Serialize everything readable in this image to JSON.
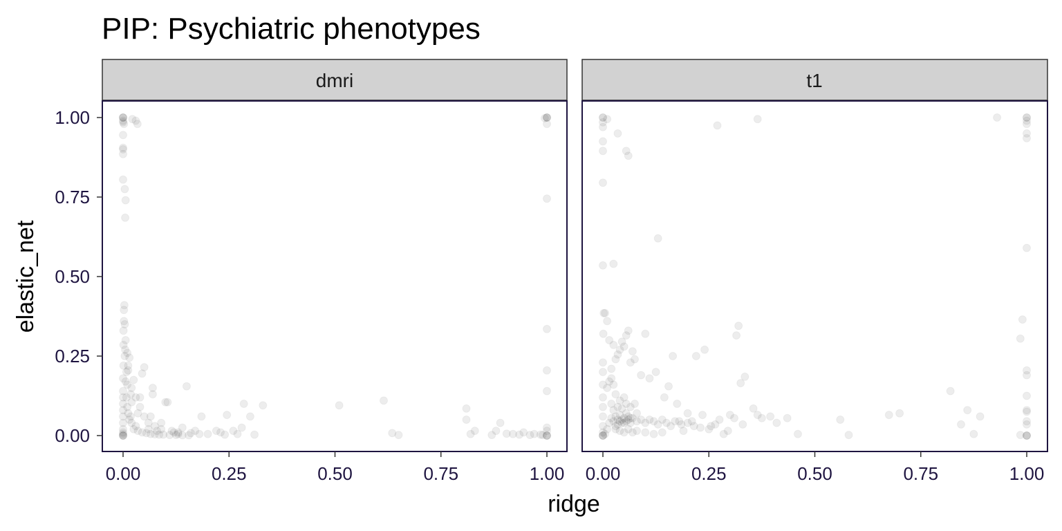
{
  "chart_data": {
    "type": "scatter",
    "title": "PIP: Psychiatric phenotypes",
    "xlabel": "ridge",
    "ylabel": "elastic_net",
    "xlim": [
      0,
      1
    ],
    "ylim": [
      0,
      1
    ],
    "x_ticks": [
      {
        "value": 0.0,
        "label": "0.00"
      },
      {
        "value": 0.25,
        "label": "0.25"
      },
      {
        "value": 0.5,
        "label": "0.50"
      },
      {
        "value": 0.75,
        "label": "0.75"
      },
      {
        "value": 1.0,
        "label": "1.00"
      }
    ],
    "y_ticks": [
      {
        "value": 0.0,
        "label": "0.00"
      },
      {
        "value": 0.25,
        "label": "0.25"
      },
      {
        "value": 0.5,
        "label": "0.50"
      },
      {
        "value": 0.75,
        "label": "0.75"
      },
      {
        "value": 1.0,
        "label": "1.00"
      }
    ],
    "grid": false,
    "point_color": "#000000",
    "point_alpha": 0.07,
    "panels": [
      {
        "name": "dmri",
        "points": [
          [
            0,
            1
          ],
          [
            0,
            1
          ],
          [
            0,
            1
          ],
          [
            0,
            0.99
          ],
          [
            0,
            0.985
          ],
          [
            0.002,
            0.98
          ],
          [
            0,
            0.945
          ],
          [
            0,
            0.905
          ],
          [
            0,
            0.9
          ],
          [
            0,
            0.885
          ],
          [
            0,
            0.805
          ],
          [
            0.004,
            0.775
          ],
          [
            0.006,
            0.74
          ],
          [
            0.005,
            0.685
          ],
          [
            0.03,
            0.99
          ],
          [
            0.034,
            0.98
          ],
          [
            0.022,
            0.995
          ],
          [
            1,
            1
          ],
          [
            1,
            1
          ],
          [
            1,
            1
          ],
          [
            0.995,
            0.998
          ],
          [
            1,
            0.98
          ],
          [
            1,
            0.745
          ],
          [
            1,
            0.335
          ],
          [
            1,
            0.205
          ],
          [
            1,
            0.14
          ],
          [
            1,
            0.025
          ],
          [
            1,
            0.015
          ],
          [
            1,
            0
          ],
          [
            1,
            0
          ],
          [
            1,
            0
          ],
          [
            0.99,
            0.002
          ],
          [
            0.985,
            0.003
          ],
          [
            0.97,
            0.005
          ],
          [
            0.96,
            0.002
          ],
          [
            0.945,
            0.01
          ],
          [
            0.935,
            0.003
          ],
          [
            0.92,
            0.005
          ],
          [
            0.905,
            0.006
          ],
          [
            0.89,
            0.04
          ],
          [
            0.88,
            0.015
          ],
          [
            0.87,
            0.002
          ],
          [
            0.83,
            0.015
          ],
          [
            0.82,
            0.005
          ],
          [
            0.81,
            0.05
          ],
          [
            0.81,
            0.085
          ],
          [
            0.65,
            0.002
          ],
          [
            0.635,
            0.008
          ],
          [
            0.615,
            0.11
          ],
          [
            0.51,
            0.095
          ],
          [
            0.33,
            0.095
          ],
          [
            0.31,
            0.003
          ],
          [
            0.3,
            0.06
          ],
          [
            0.285,
            0.1
          ],
          [
            0.28,
            0.025
          ],
          [
            0.27,
            0.005
          ],
          [
            0.26,
            0.015
          ],
          [
            0.245,
            0.065
          ],
          [
            0.23,
            0.01
          ],
          [
            0.22,
            0.015
          ],
          [
            0.185,
            0.06
          ],
          [
            0.18,
            0.005
          ],
          [
            0.17,
            0.015
          ],
          [
            0.15,
            0.155
          ],
          [
            0.14,
            0.025
          ],
          [
            0.13,
            0.005
          ],
          [
            0.12,
            0.01
          ],
          [
            0.105,
            0.105
          ],
          [
            0.1,
            0.105
          ],
          [
            0.09,
            0.04
          ],
          [
            0.08,
            0.015
          ],
          [
            0.07,
            0.15
          ],
          [
            0.07,
            0.13
          ],
          [
            0.065,
            0.06
          ],
          [
            0.06,
            0.02
          ],
          [
            0.05,
            0.215
          ],
          [
            0.045,
            0.195
          ],
          [
            0.04,
            0.12
          ],
          [
            0.035,
            0.07
          ],
          [
            0.03,
            0.03
          ],
          [
            0.025,
            0.175
          ],
          [
            0.02,
            0.105
          ],
          [
            0.018,
            0.06
          ],
          [
            0.015,
            0.245
          ],
          [
            0.012,
            0.205
          ],
          [
            0.01,
            0.26
          ],
          [
            0.01,
            0.16
          ],
          [
            0.008,
            0.12
          ],
          [
            0.006,
            0.3
          ],
          [
            0.005,
            0.27
          ],
          [
            0.004,
            0.35
          ],
          [
            0.003,
            0.41
          ],
          [
            0.002,
            0.395
          ],
          [
            0.002,
            0.36
          ],
          [
            0.001,
            0.33
          ],
          [
            0.001,
            0.285
          ],
          [
            0.001,
            0.22
          ],
          [
            0,
            0.18
          ],
          [
            0,
            0.14
          ],
          [
            0,
            0.12
          ],
          [
            0,
            0.1
          ],
          [
            0,
            0.08
          ],
          [
            0,
            0.06
          ],
          [
            0,
            0.04
          ],
          [
            0,
            0.02
          ],
          [
            0,
            0.01
          ],
          [
            0,
            0.005
          ],
          [
            0,
            0
          ],
          [
            0,
            0
          ],
          [
            0,
            0
          ],
          [
            0.01,
            0.09
          ],
          [
            0.012,
            0.07
          ],
          [
            0.015,
            0.05
          ],
          [
            0.02,
            0.04
          ],
          [
            0.025,
            0.02
          ],
          [
            0.035,
            0.015
          ],
          [
            0.045,
            0.01
          ],
          [
            0.055,
            0.008
          ],
          [
            0.065,
            0.005
          ],
          [
            0.075,
            0.004
          ],
          [
            0.085,
            0.003
          ],
          [
            0.095,
            0.003
          ],
          [
            0.11,
            0.002
          ],
          [
            0.125,
            0.002
          ],
          [
            0.14,
            0.001
          ],
          [
            0.155,
            0.001
          ],
          [
            0.02,
            0.15
          ],
          [
            0.03,
            0.12
          ],
          [
            0.008,
            0.2
          ],
          [
            0.012,
            0.22
          ],
          [
            0.004,
            0.25
          ],
          [
            0.006,
            0.17
          ],
          [
            0.018,
            0.13
          ],
          [
            0.04,
            0.09
          ],
          [
            0.05,
            0.06
          ],
          [
            0.06,
            0.04
          ],
          [
            0.075,
            0.03
          ],
          [
            0.09,
            0.02
          ],
          [
            0.115,
            0.015
          ],
          [
            0.13,
            0.01
          ],
          [
            0.16,
            0.008
          ],
          [
            0.2,
            0.005
          ],
          [
            0.24,
            0.003
          ]
        ]
      },
      {
        "name": "t1",
        "points": [
          [
            0,
            1
          ],
          [
            0,
            1
          ],
          [
            0,
            0.985
          ],
          [
            0,
            0.97
          ],
          [
            0.01,
            0.995
          ],
          [
            0.035,
            0.95
          ],
          [
            0.055,
            0.895
          ],
          [
            0.06,
            0.88
          ],
          [
            0,
            0.925
          ],
          [
            0,
            0.895
          ],
          [
            0,
            0.795
          ],
          [
            0,
            0.535
          ],
          [
            0.025,
            0.54
          ],
          [
            0.27,
            0.975
          ],
          [
            0.365,
            0.995
          ],
          [
            0.93,
            1
          ],
          [
            1,
            1
          ],
          [
            1,
            1
          ],
          [
            1,
            0.99
          ],
          [
            1,
            0.98
          ],
          [
            1,
            0.95
          ],
          [
            1,
            0.935
          ],
          [
            1,
            0.59
          ],
          [
            0.99,
            0.365
          ],
          [
            0.985,
            0.305
          ],
          [
            1,
            0.205
          ],
          [
            1,
            0.19
          ],
          [
            1,
            0.125
          ],
          [
            1,
            0.08
          ],
          [
            1,
            0.075
          ],
          [
            1,
            0.045
          ],
          [
            1,
            0.035
          ],
          [
            1,
            0
          ],
          [
            1,
            0
          ],
          [
            1,
            0
          ],
          [
            0.985,
            0.002
          ],
          [
            0.89,
            0.06
          ],
          [
            0.875,
            0.005
          ],
          [
            0.86,
            0.08
          ],
          [
            0.845,
            0.035
          ],
          [
            0.82,
            0.14
          ],
          [
            0.7,
            0.07
          ],
          [
            0.675,
            0.065
          ],
          [
            0.58,
            0.002
          ],
          [
            0.56,
            0.05
          ],
          [
            0.46,
            0.005
          ],
          [
            0.435,
            0.055
          ],
          [
            0.41,
            0.04
          ],
          [
            0.395,
            0.06
          ],
          [
            0.375,
            0.055
          ],
          [
            0.365,
            0.065
          ],
          [
            0.355,
            0.085
          ],
          [
            0.335,
            0.185
          ],
          [
            0.33,
            0.035
          ],
          [
            0.325,
            0.165
          ],
          [
            0.32,
            0.345
          ],
          [
            0.315,
            0.315
          ],
          [
            0.31,
            0.055
          ],
          [
            0.3,
            0.065
          ],
          [
            0.295,
            0.015
          ],
          [
            0.285,
            0.005
          ],
          [
            0.275,
            0.05
          ],
          [
            0.265,
            0.035
          ],
          [
            0.255,
            0.03
          ],
          [
            0.24,
            0.27
          ],
          [
            0.235,
            0.065
          ],
          [
            0.22,
            0.25
          ],
          [
            0.21,
            0.045
          ],
          [
            0.2,
            0.07
          ],
          [
            0.19,
            0.015
          ],
          [
            0.18,
            0.045
          ],
          [
            0.175,
            0.1
          ],
          [
            0.165,
            0.25
          ],
          [
            0.155,
            0.155
          ],
          [
            0.145,
            0.12
          ],
          [
            0.13,
            0.62
          ],
          [
            0.125,
            0.2
          ],
          [
            0.11,
            0.18
          ],
          [
            0.1,
            0.32
          ],
          [
            0.09,
            0.19
          ],
          [
            0.08,
            0.07
          ],
          [
            0.075,
            0.24
          ],
          [
            0.07,
            0.265
          ],
          [
            0.065,
            0.23
          ],
          [
            0.06,
            0.33
          ],
          [
            0.055,
            0.315
          ],
          [
            0.05,
            0.28
          ],
          [
            0.045,
            0.295
          ],
          [
            0.04,
            0.27
          ],
          [
            0.035,
            0.255
          ],
          [
            0.03,
            0.24
          ],
          [
            0.025,
            0.285
          ],
          [
            0.02,
            0.21
          ],
          [
            0.015,
            0.3
          ],
          [
            0.01,
            0.36
          ],
          [
            0.005,
            0.385
          ],
          [
            0.002,
            0.385
          ],
          [
            0.001,
            0.32
          ],
          [
            0,
            0.23
          ],
          [
            0,
            0.2
          ],
          [
            0,
            0.16
          ],
          [
            0,
            0.12
          ],
          [
            0,
            0.09
          ],
          [
            0,
            0.06
          ],
          [
            0,
            0.03
          ],
          [
            0,
            0.01
          ],
          [
            0,
            0
          ],
          [
            0,
            0
          ],
          [
            0,
            0
          ],
          [
            0.005,
            0.005
          ],
          [
            0.01,
            0.02
          ],
          [
            0.015,
            0.04
          ],
          [
            0.02,
            0.055
          ],
          [
            0.025,
            0.045
          ],
          [
            0.03,
            0.06
          ],
          [
            0.035,
            0.05
          ],
          [
            0.04,
            0.065
          ],
          [
            0.045,
            0.04
          ],
          [
            0.05,
            0.055
          ],
          [
            0.055,
            0.07
          ],
          [
            0.06,
            0.05
          ],
          [
            0.065,
            0.04
          ],
          [
            0.07,
            0.055
          ],
          [
            0.08,
            0.045
          ],
          [
            0.09,
            0.05
          ],
          [
            0.1,
            0.04
          ],
          [
            0.11,
            0.05
          ],
          [
            0.12,
            0.045
          ],
          [
            0.13,
            0.035
          ],
          [
            0.14,
            0.05
          ],
          [
            0.15,
            0.04
          ],
          [
            0.16,
            0.03
          ],
          [
            0.17,
            0.045
          ],
          [
            0.185,
            0.035
          ],
          [
            0.2,
            0.04
          ],
          [
            0.215,
            0.03
          ],
          [
            0.23,
            0.025
          ],
          [
            0.25,
            0.02
          ],
          [
            0.02,
            0.1
          ],
          [
            0.03,
            0.13
          ],
          [
            0.04,
            0.11
          ],
          [
            0.05,
            0.12
          ],
          [
            0.025,
            0.08
          ],
          [
            0.035,
            0.09
          ],
          [
            0.045,
            0.085
          ],
          [
            0.055,
            0.1
          ],
          [
            0.065,
            0.09
          ],
          [
            0.075,
            0.1
          ],
          [
            0.03,
            0.02
          ],
          [
            0.04,
            0.015
          ],
          [
            0.05,
            0.01
          ],
          [
            0.06,
            0.02
          ],
          [
            0.07,
            0.01
          ],
          [
            0.08,
            0.015
          ],
          [
            0.1,
            0.01
          ],
          [
            0.12,
            0.005
          ],
          [
            0.14,
            0.01
          ],
          [
            0.01,
            0.15
          ],
          [
            0.015,
            0.17
          ],
          [
            0.02,
            0.18
          ],
          [
            0.025,
            0.16
          ],
          [
            0.03,
            0.03
          ],
          [
            0.035,
            0.035
          ],
          [
            0.04,
            0.045
          ],
          [
            0.045,
            0.05
          ],
          [
            0.05,
            0.04
          ],
          [
            0.055,
            0.045
          ],
          [
            0.06,
            0.06
          ],
          [
            0.065,
            0.055
          ]
        ]
      }
    ]
  }
}
